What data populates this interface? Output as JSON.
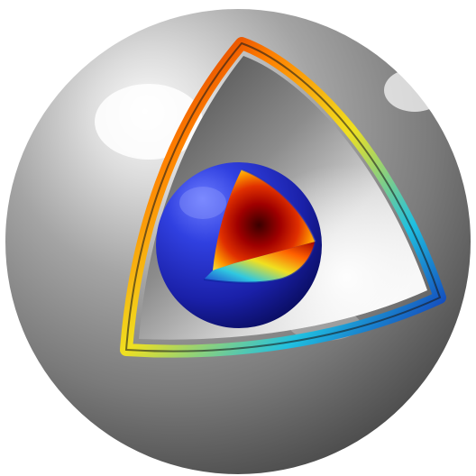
{
  "scene": {
    "description_label": "",
    "colors": {
      "background": "#ffffff",
      "outer_shell_light": "#f0f0f0",
      "outer_shell_mid": "#9a9a9a",
      "outer_shell_dark": "#4a4a4a",
      "cavity_light": "#f2f2f2",
      "cavity_dark": "#5a5a5a",
      "inner_sphere_light": "#4a5cff",
      "inner_sphere_dark": "#0a1070",
      "heat_hot": "#5a0000",
      "heat_red": "#d00000",
      "heat_orange": "#ff8a00",
      "heat_yellow": "#ffe600",
      "heat_cyan": "#30d0e0",
      "heat_blue": "#1030c0"
    },
    "layers": [
      "outer-shell",
      "cutaway-rim",
      "cavity-interior",
      "inner-sphere",
      "inner-cutaway-heatmap"
    ]
  }
}
